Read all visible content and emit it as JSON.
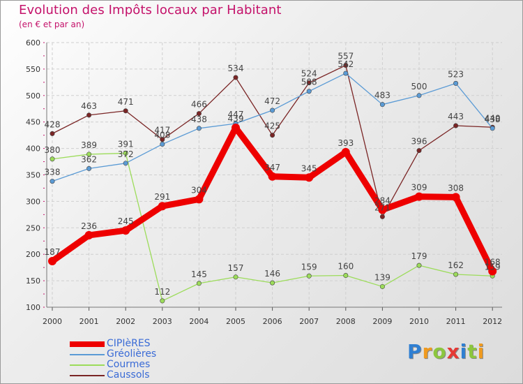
{
  "title": "Evolution des Impôts locaux par Habitant",
  "subtitle": "(en € et par an)",
  "logo": {
    "text": "Proxiti",
    "letters": [
      "P",
      "r",
      "o",
      "x",
      "i",
      "t",
      "i"
    ],
    "colors": [
      "#2f7fd2",
      "#f09a1e",
      "#8cc63f",
      "#e53935",
      "#2f7fd2",
      "#8cc63f",
      "#f09a1e"
    ]
  },
  "chart_data": {
    "type": "line",
    "x": [
      "2000",
      "2001",
      "2002",
      "2003",
      "2004",
      "2005",
      "2006",
      "2007",
      "2008",
      "2009",
      "2010",
      "2011",
      "2012"
    ],
    "ylim": [
      100,
      600
    ],
    "yticks": [
      "100",
      "150",
      "200",
      "250",
      "300",
      "350",
      "400",
      "450",
      "500",
      "550",
      "600"
    ],
    "grid": true,
    "legend_position": "bottom-left",
    "series": [
      {
        "name": "CIPIèRES",
        "color": "#ee0000",
        "values": [
          187,
          236,
          245,
          291,
          304,
          439,
          347,
          345,
          393,
          284,
          309,
          308,
          168
        ],
        "labels": [
          "187",
          "236",
          "245",
          "291",
          "304",
          "439",
          "347",
          "345",
          "393",
          "284",
          "309",
          "308",
          "168"
        ]
      },
      {
        "name": "Gréolières",
        "color": "#5b9bd5",
        "values": [
          338,
          362,
          372,
          408,
          438,
          447,
          472,
          508,
          542,
          483,
          500,
          523,
          438
        ],
        "labels": [
          "338",
          "362",
          "372",
          "408",
          "438",
          "447",
          "472",
          "508",
          "542",
          "483",
          "500",
          "523",
          "438"
        ]
      },
      {
        "name": "Courmes",
        "color": "#9cdc5a",
        "values": [
          380,
          389,
          391,
          112,
          145,
          157,
          146,
          159,
          160,
          139,
          179,
          162,
          159
        ],
        "labels": [
          "380",
          "389",
          "391",
          "112",
          "145",
          "157",
          "146",
          "159",
          "160",
          "139",
          "179",
          "162",
          "159"
        ]
      },
      {
        "name": "Caussols",
        "color": "#7a2525",
        "values": [
          428,
          463,
          471,
          417,
          466,
          534,
          425,
          524,
          557,
          271,
          396,
          443,
          440
        ],
        "labels": [
          "428",
          "463",
          "471",
          "417",
          "466",
          "534",
          "425",
          "524",
          "557",
          "271",
          "396",
          "443",
          "440"
        ]
      }
    ]
  }
}
